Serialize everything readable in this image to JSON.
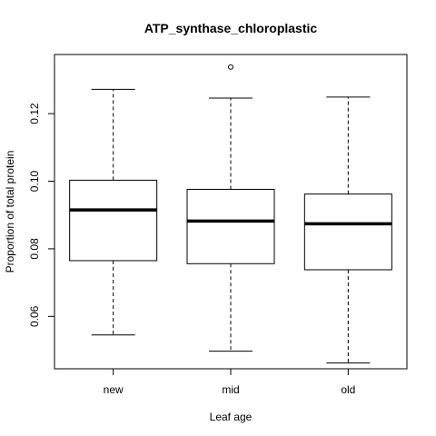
{
  "chart_data": {
    "type": "box",
    "title": "ATP_synthase_chloroplastic",
    "xlabel": "Leaf age",
    "ylabel": "Proportion of total protein",
    "categories": [
      "new",
      "mid",
      "old"
    ],
    "ylim": [
      0.0445,
      0.1375
    ],
    "yticks": [
      0.06,
      0.08,
      0.1,
      0.12
    ],
    "ytick_labels": [
      "0.06",
      "0.08",
      "0.10",
      "0.12"
    ],
    "boxes": [
      {
        "category": "new",
        "whisker_low": 0.0545,
        "q1": 0.0765,
        "median": 0.0915,
        "q3": 0.1003,
        "whisker_high": 0.1272,
        "outliers": []
      },
      {
        "category": "mid",
        "whisker_low": 0.0497,
        "q1": 0.0756,
        "median": 0.0882,
        "q3": 0.0976,
        "whisker_high": 0.1246,
        "outliers": [
          0.1338
        ]
      },
      {
        "category": "old",
        "whisker_low": 0.0462,
        "q1": 0.0738,
        "median": 0.0874,
        "q3": 0.0962,
        "whisker_high": 0.1249,
        "outliers": []
      }
    ],
    "grid": false,
    "legend": "none"
  }
}
